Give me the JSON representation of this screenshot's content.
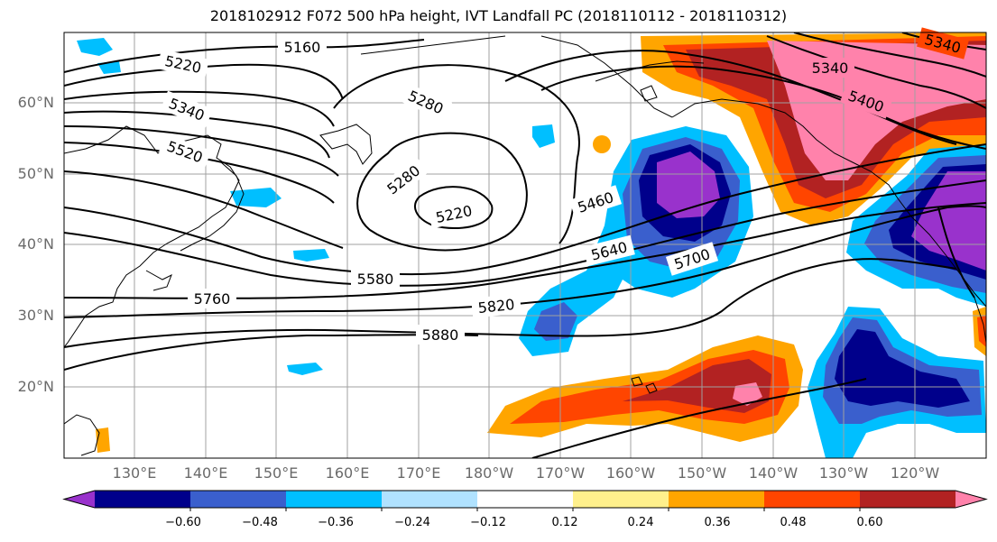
{
  "title": "2018102912 F072 500 hPa height, IVT Landfall PC (2018110112 - 2018110312)",
  "lat_labels": [
    "60°N",
    "50°N",
    "40°N",
    "30°N",
    "20°N"
  ],
  "lon_labels": [
    "130°E",
    "140°E",
    "150°E",
    "160°E",
    "170°E",
    "180°W",
    "170°W",
    "160°W",
    "150°W",
    "140°W",
    "130°W",
    "120°W"
  ],
  "contour_labels": [
    "5160",
    "5220",
    "5340",
    "5520",
    "5280",
    "5280",
    "5220",
    "5460",
    "5340",
    "5400",
    "5340",
    "5640",
    "5700",
    "5580",
    "5760",
    "5820",
    "5880"
  ],
  "colorbar": {
    "tick_labels": [
      "−0.60",
      "−0.48",
      "−0.36",
      "−0.24",
      "−0.12",
      "0.12",
      "0.24",
      "0.36",
      "0.48",
      "0.60"
    ],
    "colors": [
      "#9932cc",
      "#00008b",
      "#3a5fcd",
      "#00bfff",
      "#b0e2ff",
      "#ffffff",
      "#fff08c",
      "#ffa500",
      "#ff4500",
      "#b22222",
      "#ff82ab"
    ]
  }
}
